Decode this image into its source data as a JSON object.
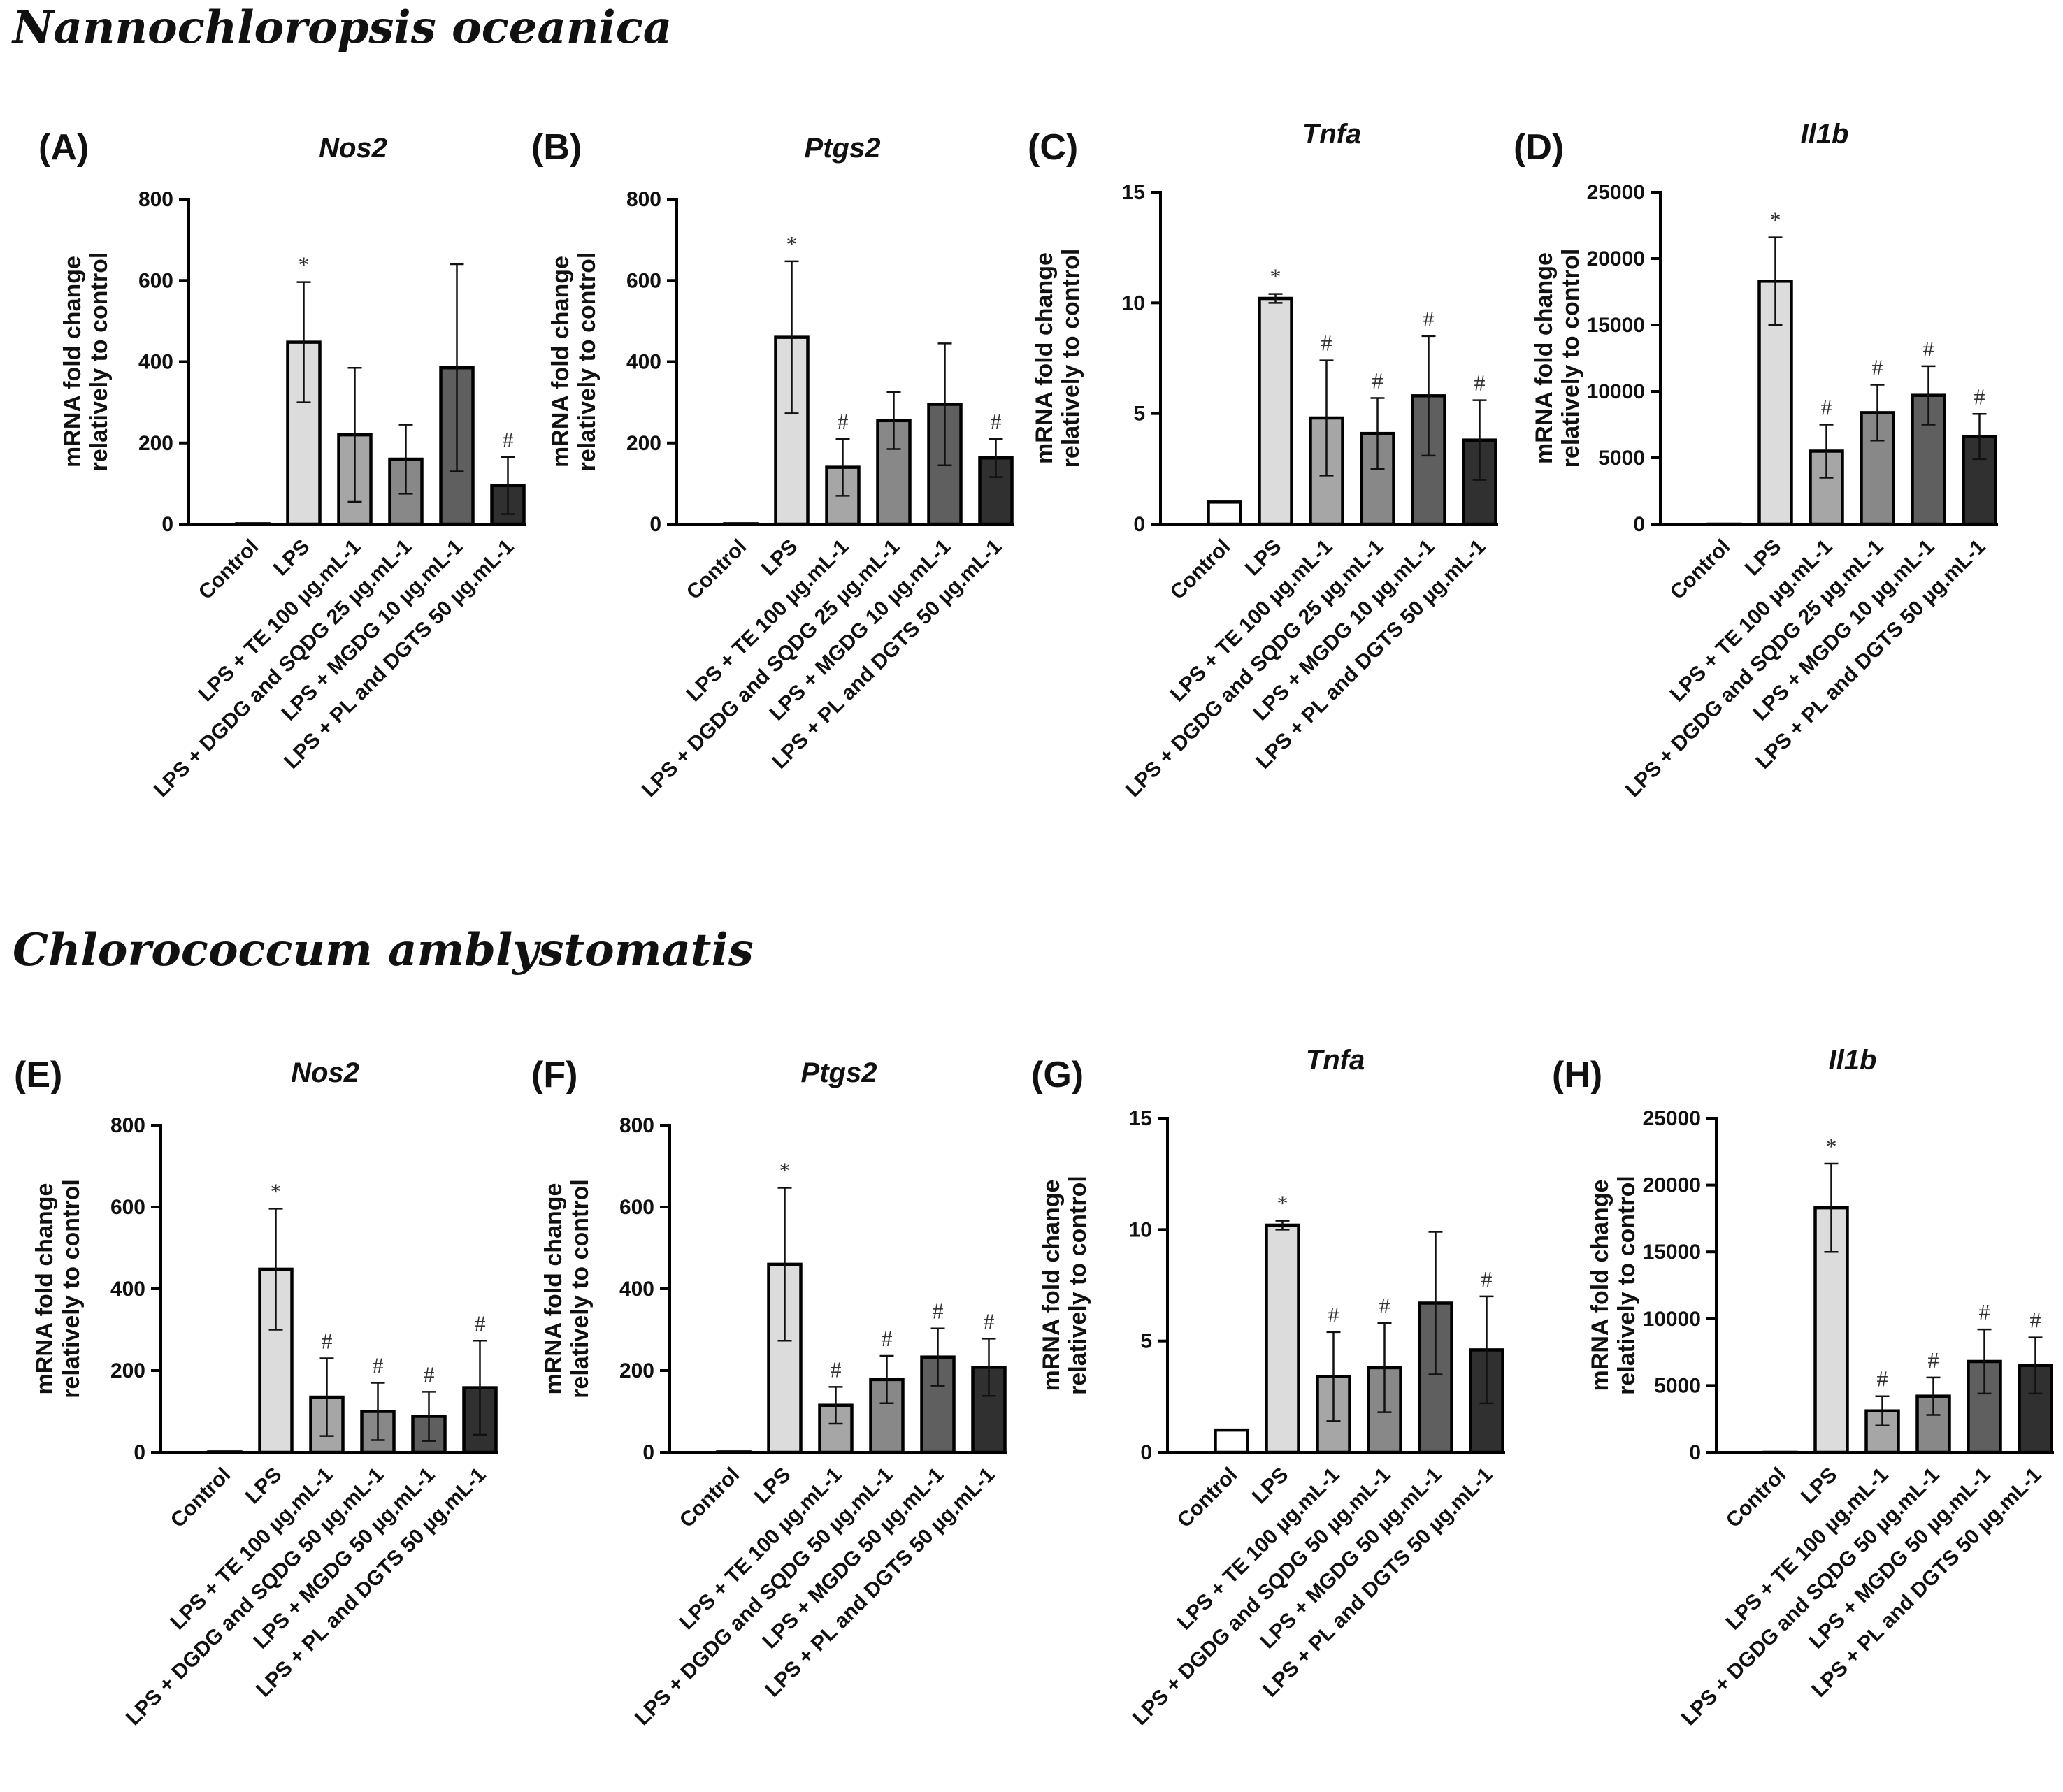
{
  "figure": {
    "section_top_title": "Nannochloropsis oceanica",
    "section_bottom_title": "Chlorococcum amblystomatis"
  },
  "bar_colors": [
    "#ffffff",
    "#dcdcdc",
    "#a6a6a6",
    "#888888",
    "#5f5f5f",
    "#303030"
  ],
  "chart_data": [
    {
      "panel": "(A)",
      "type": "bar",
      "title": "Nos2",
      "ylabel": "mRNA fold change relatively to control",
      "ylim": [
        0,
        800
      ],
      "yticks": [
        0,
        200,
        400,
        600,
        800
      ],
      "categories": [
        "Control",
        "LPS",
        "LPS + TE 100 µg.mL-1",
        "LPS + DGDG and SQDG 25 µg.mL-1",
        "LPS + MGDG 10 µg.mL-1",
        "LPS + PL and DGTS 50 µg.mL-1"
      ],
      "values": [
        1,
        448,
        220,
        160,
        385,
        95
      ],
      "errors": [
        0,
        148,
        165,
        85,
        255,
        70
      ],
      "marks": [
        "",
        "*",
        "",
        "",
        "",
        "#"
      ]
    },
    {
      "panel": "(B)",
      "type": "bar",
      "title": "Ptgs2",
      "ylabel": "mRNA fold change relatively to control",
      "ylim": [
        0,
        800
      ],
      "yticks": [
        0,
        200,
        400,
        600,
        800
      ],
      "categories": [
        "Control",
        "LPS",
        "LPS + TE 100 µg.mL-1",
        "LPS + DGDG and SQDG 25 µg.mL-1",
        "LPS + MGDG 10 µg.mL-1",
        "LPS + PL and DGTS 50 µg.mL-1"
      ],
      "values": [
        1,
        460,
        140,
        255,
        295,
        163
      ],
      "errors": [
        0,
        187,
        70,
        70,
        150,
        47
      ],
      "marks": [
        "",
        "*",
        "#",
        "",
        "",
        "#"
      ]
    },
    {
      "panel": "(C)",
      "type": "bar",
      "title": "Tnfa",
      "ylabel": "mRNA fold change relatively to control",
      "ylim": [
        0,
        15
      ],
      "yticks": [
        0,
        5,
        10,
        15
      ],
      "categories": [
        "Control",
        "LPS",
        "LPS + TE 100 µg.mL-1",
        "LPS + DGDG and SQDG 25 µg.mL-1",
        "LPS + MGDG 10 µg.mL-1",
        "LPS + PL and DGTS 50 µg.mL-1"
      ],
      "values": [
        1,
        10.2,
        4.8,
        4.1,
        5.8,
        3.8
      ],
      "errors": [
        0,
        0.2,
        2.6,
        1.6,
        2.7,
        1.8
      ],
      "marks": [
        "",
        "*",
        "#",
        "#",
        "#",
        "#"
      ]
    },
    {
      "panel": "(D)",
      "type": "bar",
      "title": "Il1b",
      "ylabel": "mRNA fold change relatively to control",
      "ylim": [
        0,
        25000
      ],
      "yticks": [
        0,
        5000,
        10000,
        15000,
        20000,
        25000
      ],
      "categories": [
        "Control",
        "LPS",
        "LPS + TE 100 µg.mL-1",
        "LPS + DGDG and SQDG 25 µg.mL-1",
        "LPS + MGDG 10 µg.mL-1",
        "LPS + PL and DGTS 50 µg.mL-1"
      ],
      "values": [
        1,
        18300,
        5500,
        8400,
        9700,
        6600
      ],
      "errors": [
        0,
        3300,
        2000,
        2100,
        2200,
        1700
      ],
      "marks": [
        "",
        "*",
        "#",
        "#",
        "#",
        "#"
      ]
    },
    {
      "panel": "(E)",
      "type": "bar",
      "title": "Nos2",
      "ylabel": "mRNA fold change relatively to control",
      "ylim": [
        0,
        800
      ],
      "yticks": [
        0,
        200,
        400,
        600,
        800
      ],
      "categories": [
        "Control",
        "LPS",
        "LPS + TE 100 µg.mL-1",
        "LPS + DGDG and SQDG 50 µg.mL-1",
        "LPS + MGDG 50 µg.mL-1",
        "LPS + PL and DGTS 50 µg.mL-1"
      ],
      "values": [
        1,
        448,
        135,
        100,
        88,
        158
      ],
      "errors": [
        0,
        148,
        95,
        70,
        60,
        115
      ],
      "marks": [
        "",
        "*",
        "#",
        "#",
        "#",
        "#"
      ]
    },
    {
      "panel": "(F)",
      "type": "bar",
      "title": "Ptgs2",
      "ylabel": "mRNA fold change relatively to control",
      "ylim": [
        0,
        800
      ],
      "yticks": [
        0,
        200,
        400,
        600,
        800
      ],
      "categories": [
        "Control",
        "LPS",
        "LPS + TE 100 µg.mL-1",
        "LPS + DGDG and SQDG 50 µg.mL-1",
        "LPS + MGDG 50 µg.mL-1",
        "LPS + PL and DGTS 50 µg.mL-1"
      ],
      "values": [
        1,
        460,
        115,
        178,
        233,
        208
      ],
      "errors": [
        0,
        187,
        45,
        58,
        70,
        70
      ],
      "marks": [
        "",
        "*",
        "#",
        "#",
        "#",
        "#"
      ]
    },
    {
      "panel": "(G)",
      "type": "bar",
      "title": "Tnfa",
      "ylabel": "mRNA fold change relatively to control",
      "ylim": [
        0,
        15
      ],
      "yticks": [
        0,
        5,
        10,
        15
      ],
      "categories": [
        "Control",
        "LPS",
        "LPS + TE 100 µg.mL-1",
        "LPS + DGDG and SQDG 50 µg.mL-1",
        "LPS + MGDG 50 µg.mL-1",
        "LPS + PL and DGTS 50 µg.mL-1"
      ],
      "values": [
        1,
        10.2,
        3.4,
        3.8,
        6.7,
        4.6
      ],
      "errors": [
        0,
        0.2,
        2.0,
        2.0,
        3.2,
        2.4
      ],
      "marks": [
        "",
        "*",
        "#",
        "#",
        "",
        "#"
      ]
    },
    {
      "panel": "(H)",
      "type": "bar",
      "title": "Il1b",
      "ylabel": "mRNA fold change relatively to control",
      "ylim": [
        0,
        25000
      ],
      "yticks": [
        0,
        5000,
        10000,
        15000,
        20000,
        25000
      ],
      "categories": [
        "Control",
        "LPS",
        "LPS + TE 100 µg.mL-1",
        "LPS + DGDG and SQDG 50 µg.mL-1",
        "LPS + MGDG 50 µg.mL-1",
        "LPS + PL and DGTS 50 µg.mL-1"
      ],
      "values": [
        1,
        18300,
        3100,
        4200,
        6800,
        6500
      ],
      "errors": [
        0,
        3300,
        1100,
        1400,
        2400,
        2100
      ],
      "marks": [
        "",
        "*",
        "#",
        "#",
        "#",
        "#"
      ]
    }
  ]
}
